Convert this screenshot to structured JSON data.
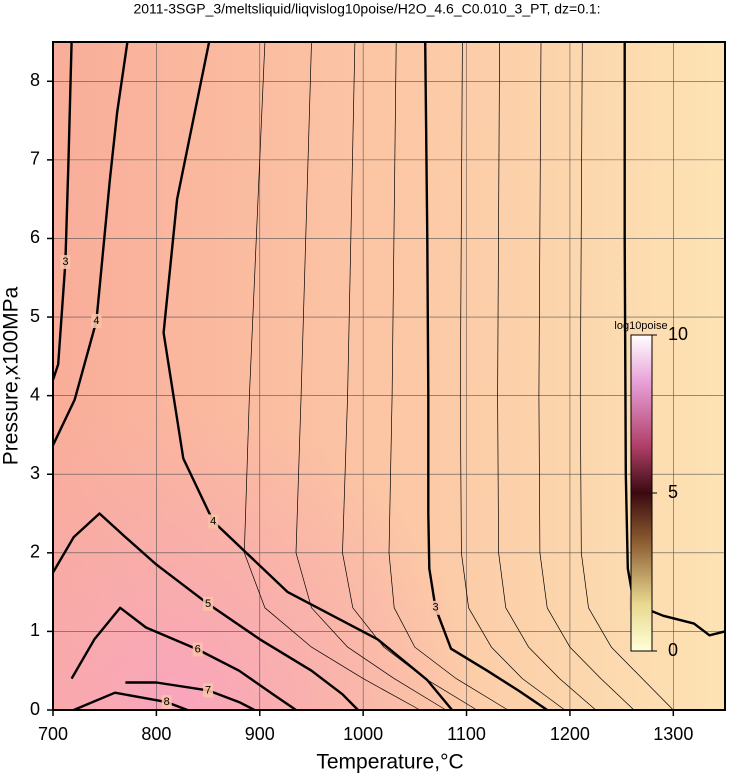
{
  "chart_data": {
    "type": "contour",
    "title": "2011-3SGP_3/meltsliquid/liqvislog10poise/H2O_4.6_C0.010_3_PT, dz=0.1:",
    "x_label": "Temperature,°C",
    "y_label": "Pressure,x100MPa",
    "xlim": [
      700,
      1350
    ],
    "ylim": [
      0,
      8.5
    ],
    "xticks": [
      700,
      800,
      900,
      1000,
      1100,
      1200,
      1300
    ],
    "yticks": [
      0,
      1,
      2,
      3,
      4,
      5,
      6,
      7,
      8
    ],
    "grid": true,
    "colorbar": {
      "label": "log10poise",
      "lim": [
        0,
        10
      ],
      "ticks": [
        0,
        5,
        10
      ]
    },
    "contours": [
      {
        "level": 2,
        "x": [
          1253,
          1253,
          1254,
          1256,
          1262,
          1290,
          1320,
          1335,
          1350
        ],
        "y": [
          8.5,
          6,
          3,
          1.8,
          1.35,
          1.2,
          1.1,
          0.95,
          1.0
        ]
      },
      {
        "level": 2.2,
        "x": [
          1212,
          1210,
          1211,
          1218,
          1240,
          1270,
          1300
        ],
        "y": [
          8.5,
          4,
          2,
          1.3,
          0.8,
          0.4,
          0
        ]
      },
      {
        "level": 2.4,
        "x": [
          1172,
          1170,
          1171,
          1178,
          1200,
          1230,
          1262
        ],
        "y": [
          8.5,
          4,
          2,
          1.3,
          0.8,
          0.4,
          0
        ]
      },
      {
        "level": 2.6,
        "x": [
          1132,
          1130,
          1131,
          1138,
          1160,
          1190,
          1225
        ],
        "y": [
          8.5,
          4,
          2,
          1.3,
          0.8,
          0.4,
          0
        ]
      },
      {
        "level": 2.8,
        "x": [
          1096,
          1094,
          1095,
          1102,
          1124,
          1154,
          1195
        ],
        "y": [
          8.5,
          4,
          2,
          1.3,
          0.8,
          0.4,
          0
        ]
      },
      {
        "level": 3,
        "x": [
          1060,
          1062,
          1063,
          1063,
          1064,
          1070,
          1085,
          1120,
          1150,
          1178
        ],
        "y": [
          8.5,
          6,
          4,
          2.5,
          1.8,
          1.3,
          0.78,
          0.5,
          0.25,
          0
        ]
      },
      {
        "level": 3.2,
        "x": [
          1032,
          1028,
          1025,
          1030,
          1050,
          1090,
          1140
        ],
        "y": [
          8.5,
          4,
          2,
          1.3,
          0.8,
          0.4,
          0
        ]
      },
      {
        "level": 3.4,
        "x": [
          992,
          985,
          980,
          990,
          1020,
          1060,
          1110
        ],
        "y": [
          8.5,
          4,
          2,
          1.3,
          0.8,
          0.4,
          0
        ]
      },
      {
        "level": 3.6,
        "x": [
          950,
          940,
          935,
          950,
          985,
          1030,
          1080
        ],
        "y": [
          8.5,
          4,
          2,
          1.3,
          0.8,
          0.4,
          0
        ]
      },
      {
        "level": 3.8,
        "x": [
          905,
          890,
          885,
          905,
          950,
          1000,
          1055
        ],
        "y": [
          8.5,
          4,
          2,
          1.3,
          0.8,
          0.4,
          0
        ]
      },
      {
        "level": 4,
        "x": [
          851,
          820,
          807,
          826,
          855,
          927,
          1014,
          1062,
          1086
        ],
        "y": [
          8.5,
          6.5,
          4.8,
          3.2,
          2.4,
          1.5,
          0.9,
          0.38,
          0
        ]
      },
      {
        "level": 4,
        "x": [
          772,
          762,
          755,
          742,
          721,
          700
        ],
        "y": [
          8.5,
          7.6,
          6.75,
          4.95,
          3.95,
          3.37
        ]
      },
      {
        "level": 3,
        "x": [
          718,
          715,
          712,
          705,
          700
        ],
        "y": [
          8.5,
          7,
          5.7,
          4.4,
          4.2
        ]
      },
      {
        "level": 5,
        "x": [
          700,
          720,
          745,
          770,
          800,
          850,
          900,
          950,
          980,
          995
        ],
        "y": [
          1.75,
          2.2,
          2.5,
          2.2,
          1.85,
          1.35,
          0.9,
          0.5,
          0.2,
          0
        ]
      },
      {
        "level": 6,
        "x": [
          718,
          740,
          765,
          790,
          840,
          880,
          915,
          935
        ],
        "y": [
          0.4,
          0.9,
          1.3,
          1.05,
          0.77,
          0.5,
          0.18,
          0
        ]
      },
      {
        "level": 7,
        "x": [
          770,
          800,
          850,
          880,
          895
        ],
        "y": [
          0.35,
          0.35,
          0.25,
          0.1,
          0
        ]
      },
      {
        "level": 8,
        "x": [
          720,
          760,
          810,
          830
        ],
        "y": [
          0,
          0.22,
          0.1,
          0
        ]
      }
    ]
  }
}
